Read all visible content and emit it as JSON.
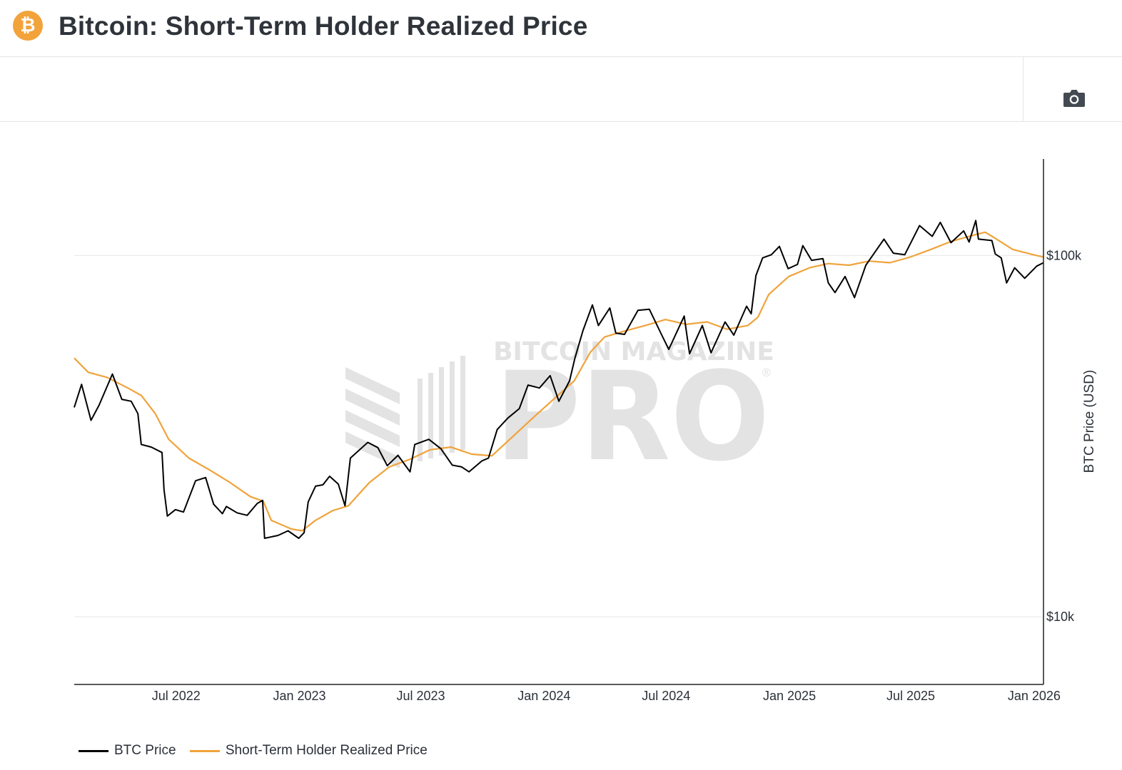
{
  "header": {
    "title": "Bitcoin: Short-Term Holder Realized Price",
    "logo_icon": "bitcoin-logo-icon",
    "logo_glyph": "₿"
  },
  "toolbar": {
    "camera_icon": "camera-icon"
  },
  "watermark": {
    "line1": "BITCOIN MAGAZINE",
    "line2": "PRO",
    "mark": "®"
  },
  "colors": {
    "btc_price": "#000000",
    "sth_realized_price": "#f0a33b",
    "brand": "#f2a33a",
    "gridline": "#e6e6e6",
    "watermark": "#e3e3e3"
  },
  "chart_data": {
    "type": "line",
    "title": "Bitcoin: Short-Term Holder Realized Price",
    "xlabel": "",
    "ylabel": "BTC Price (USD)",
    "yscale": "log",
    "xlim": [
      "2022-01-30",
      "2026-01-15"
    ],
    "ylim": [
      6500,
      185000
    ],
    "grid": true,
    "legend_position": "bottom-left",
    "x_ticks": [
      {
        "date": "2022-07-01",
        "label": "Jul 2022"
      },
      {
        "date": "2023-01-01",
        "label": "Jan 2023"
      },
      {
        "date": "2023-07-01",
        "label": "Jul 2023"
      },
      {
        "date": "2024-01-01",
        "label": "Jan 2024"
      },
      {
        "date": "2024-07-01",
        "label": "Jul 2024"
      },
      {
        "date": "2025-01-01",
        "label": "Jan 2025"
      },
      {
        "date": "2025-07-01",
        "label": "Jul 2025"
      },
      {
        "date": "2026-01-01",
        "label": "Jan 2026"
      }
    ],
    "y_ticks": [
      {
        "value": 10000,
        "label": "$10k"
      },
      {
        "value": 100000,
        "label": "$100k"
      }
    ],
    "series": [
      {
        "name": "BTC Price",
        "color": "#000000",
        "points": [
          [
            "2022-01-30",
            38000
          ],
          [
            "2022-02-10",
            44000
          ],
          [
            "2022-02-24",
            35000
          ],
          [
            "2022-03-08",
            38500
          ],
          [
            "2022-03-28",
            47000
          ],
          [
            "2022-04-11",
            40000
          ],
          [
            "2022-04-25",
            39500
          ],
          [
            "2022-05-05",
            36500
          ],
          [
            "2022-05-10",
            30000
          ],
          [
            "2022-05-25",
            29500
          ],
          [
            "2022-06-10",
            28500
          ],
          [
            "2022-06-13",
            22500
          ],
          [
            "2022-06-18",
            19000
          ],
          [
            "2022-06-30",
            19800
          ],
          [
            "2022-07-12",
            19500
          ],
          [
            "2022-07-30",
            23800
          ],
          [
            "2022-08-14",
            24300
          ],
          [
            "2022-08-26",
            20500
          ],
          [
            "2022-09-08",
            19300
          ],
          [
            "2022-09-14",
            20200
          ],
          [
            "2022-09-30",
            19400
          ],
          [
            "2022-10-15",
            19100
          ],
          [
            "2022-10-30",
            20600
          ],
          [
            "2022-11-07",
            21000
          ],
          [
            "2022-11-10",
            16500
          ],
          [
            "2022-11-30",
            16800
          ],
          [
            "2022-12-15",
            17300
          ],
          [
            "2022-12-31",
            16500
          ],
          [
            "2023-01-08",
            17100
          ],
          [
            "2023-01-14",
            20800
          ],
          [
            "2023-01-25",
            23000
          ],
          [
            "2023-02-05",
            23200
          ],
          [
            "2023-02-15",
            24500
          ],
          [
            "2023-02-28",
            23300
          ],
          [
            "2023-03-10",
            20300
          ],
          [
            "2023-03-18",
            27500
          ],
          [
            "2023-04-13",
            30400
          ],
          [
            "2023-04-28",
            29400
          ],
          [
            "2023-05-12",
            26200
          ],
          [
            "2023-05-28",
            28000
          ],
          [
            "2023-06-15",
            25200
          ],
          [
            "2023-06-22",
            30000
          ],
          [
            "2023-07-13",
            31000
          ],
          [
            "2023-07-31",
            29200
          ],
          [
            "2023-08-17",
            26300
          ],
          [
            "2023-08-31",
            26000
          ],
          [
            "2023-09-11",
            25200
          ],
          [
            "2023-09-30",
            27000
          ],
          [
            "2023-10-10",
            27500
          ],
          [
            "2023-10-23",
            33000
          ],
          [
            "2023-11-08",
            35500
          ],
          [
            "2023-11-25",
            37700
          ],
          [
            "2023-12-08",
            43800
          ],
          [
            "2023-12-25",
            43000
          ],
          [
            "2024-01-10",
            46500
          ],
          [
            "2024-01-23",
            39500
          ],
          [
            "2024-02-08",
            45000
          ],
          [
            "2024-02-16",
            52000
          ],
          [
            "2024-02-28",
            62000
          ],
          [
            "2024-03-13",
            73000
          ],
          [
            "2024-03-22",
            64000
          ],
          [
            "2024-04-08",
            71600
          ],
          [
            "2024-04-17",
            61000
          ],
          [
            "2024-04-30",
            60500
          ],
          [
            "2024-05-20",
            70500
          ],
          [
            "2024-06-06",
            71000
          ],
          [
            "2024-06-24",
            60500
          ],
          [
            "2024-07-05",
            55000
          ],
          [
            "2024-07-28",
            68000
          ],
          [
            "2024-08-05",
            53500
          ],
          [
            "2024-08-24",
            64000
          ],
          [
            "2024-09-06",
            53800
          ],
          [
            "2024-09-27",
            65500
          ],
          [
            "2024-10-10",
            60200
          ],
          [
            "2024-10-29",
            72400
          ],
          [
            "2024-11-05",
            69000
          ],
          [
            "2024-11-12",
            88000
          ],
          [
            "2024-11-22",
            98500
          ],
          [
            "2024-12-05",
            100500
          ],
          [
            "2024-12-17",
            106000
          ],
          [
            "2024-12-30",
            92000
          ],
          [
            "2025-01-13",
            94500
          ],
          [
            "2025-01-21",
            106500
          ],
          [
            "2025-02-03",
            97000
          ],
          [
            "2025-02-20",
            98000
          ],
          [
            "2025-02-28",
            84000
          ],
          [
            "2025-03-10",
            79000
          ],
          [
            "2025-03-25",
            87500
          ],
          [
            "2025-04-08",
            76500
          ],
          [
            "2025-04-25",
            94000
          ],
          [
            "2025-05-22",
            111000
          ],
          [
            "2025-06-05",
            101500
          ],
          [
            "2025-06-22",
            100500
          ],
          [
            "2025-07-14",
            121000
          ],
          [
            "2025-08-02",
            113000
          ],
          [
            "2025-08-14",
            123500
          ],
          [
            "2025-08-30",
            108500
          ],
          [
            "2025-09-18",
            117000
          ],
          [
            "2025-09-26",
            109000
          ],
          [
            "2025-10-06",
            125000
          ],
          [
            "2025-10-10",
            111000
          ],
          [
            "2025-10-30",
            110000
          ],
          [
            "2025-11-04",
            101000
          ],
          [
            "2025-11-13",
            98500
          ],
          [
            "2025-11-21",
            84000
          ],
          [
            "2025-12-03",
            92500
          ],
          [
            "2025-12-18",
            86500
          ],
          [
            "2026-01-05",
            93500
          ],
          [
            "2026-01-15",
            95500
          ]
        ]
      },
      {
        "name": "Short-Term Holder Realized Price",
        "color": "#f0a33b",
        "points": [
          [
            "2022-01-30",
            52000
          ],
          [
            "2022-02-20",
            47500
          ],
          [
            "2022-03-20",
            46000
          ],
          [
            "2022-04-20",
            43000
          ],
          [
            "2022-05-10",
            41000
          ],
          [
            "2022-05-31",
            36500
          ],
          [
            "2022-06-20",
            31000
          ],
          [
            "2022-07-20",
            27500
          ],
          [
            "2022-08-20",
            25500
          ],
          [
            "2022-09-20",
            23500
          ],
          [
            "2022-10-20",
            21500
          ],
          [
            "2022-11-08",
            20900
          ],
          [
            "2022-11-20",
            18500
          ],
          [
            "2022-12-20",
            17500
          ],
          [
            "2023-01-05",
            17300
          ],
          [
            "2023-01-25",
            18500
          ],
          [
            "2023-02-20",
            19700
          ],
          [
            "2023-03-15",
            20300
          ],
          [
            "2023-04-15",
            23500
          ],
          [
            "2023-05-15",
            26000
          ],
          [
            "2023-06-15",
            27300
          ],
          [
            "2023-07-15",
            29000
          ],
          [
            "2023-08-15",
            29500
          ],
          [
            "2023-09-15",
            28200
          ],
          [
            "2023-10-15",
            27900
          ],
          [
            "2023-11-15",
            31500
          ],
          [
            "2023-12-15",
            35500
          ],
          [
            "2024-01-15",
            40000
          ],
          [
            "2024-02-15",
            45000
          ],
          [
            "2024-03-10",
            54000
          ],
          [
            "2024-03-31",
            59500
          ],
          [
            "2024-04-30",
            61800
          ],
          [
            "2024-05-31",
            64000
          ],
          [
            "2024-06-30",
            66500
          ],
          [
            "2024-07-31",
            64500
          ],
          [
            "2024-08-31",
            65500
          ],
          [
            "2024-09-30",
            62500
          ],
          [
            "2024-10-31",
            64000
          ],
          [
            "2024-11-15",
            67500
          ],
          [
            "2024-12-01",
            78000
          ],
          [
            "2024-12-31",
            87500
          ],
          [
            "2025-01-31",
            92500
          ],
          [
            "2025-02-28",
            95000
          ],
          [
            "2025-03-31",
            94000
          ],
          [
            "2025-04-30",
            96500
          ],
          [
            "2025-05-31",
            95500
          ],
          [
            "2025-06-30",
            99000
          ],
          [
            "2025-07-31",
            104000
          ],
          [
            "2025-08-31",
            109500
          ],
          [
            "2025-09-30",
            113500
          ],
          [
            "2025-10-20",
            116000
          ],
          [
            "2025-11-01",
            112500
          ],
          [
            "2025-11-30",
            104000
          ],
          [
            "2025-12-31",
            100500
          ],
          [
            "2026-01-15",
            99000
          ]
        ]
      }
    ]
  }
}
